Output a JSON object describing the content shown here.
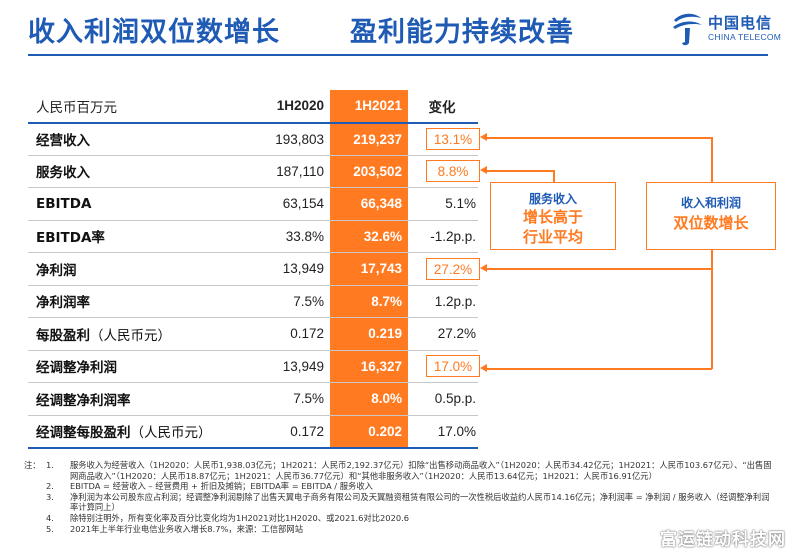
{
  "header": {
    "title_left": "收入利润双位数增长",
    "title_right": "盈利能力持续改善",
    "logo_cn": "中国电信",
    "logo_en": "CHINA TELECOM",
    "brand_color": "#1f5bb5",
    "accent_color": "#ff7a20"
  },
  "table": {
    "columns": [
      "人民币百万元",
      "1H2020",
      "1H2021",
      "变化"
    ],
    "rows": [
      {
        "label": "经营收入",
        "paren": "",
        "prev": "193,803",
        "cur": "219,237",
        "change": "13.1%",
        "boxed": true
      },
      {
        "label": "服务收入",
        "paren": "",
        "prev": "187,110",
        "cur": "203,502",
        "change": "8.8%",
        "boxed": true
      },
      {
        "label": "EBITDA",
        "paren": "",
        "prev": "63,154",
        "cur": "66,348",
        "change": "5.1%",
        "boxed": false
      },
      {
        "label": "EBITDA率",
        "paren": "",
        "prev": "33.8%",
        "cur": "32.6%",
        "change": "-1.2p.p.",
        "boxed": false
      },
      {
        "label": "净利润",
        "paren": "",
        "prev": "13,949",
        "cur": "17,743",
        "change": "27.2%",
        "boxed": true
      },
      {
        "label": "净利润率",
        "paren": "",
        "prev": "7.5%",
        "cur": "8.7%",
        "change": "1.2p.p.",
        "boxed": false
      },
      {
        "label": "每股盈利",
        "paren": "（人民币元）",
        "prev": "0.172",
        "cur": "0.219",
        "change": "27.2%",
        "boxed": false
      },
      {
        "label": "经调整净利润",
        "paren": "",
        "prev": "13,949",
        "cur": "16,327",
        "change": "17.0%",
        "boxed": true
      },
      {
        "label": "经调整净利润率",
        "paren": "",
        "prev": "7.5%",
        "cur": "8.0%",
        "change": "0.5p.p.",
        "boxed": false
      },
      {
        "label": "经调整每股盈利",
        "paren": "（人民币元）",
        "prev": "0.172",
        "cur": "0.202",
        "change": "17.0%",
        "boxed": false
      }
    ]
  },
  "callouts": {
    "service": {
      "small": "服务收入",
      "line1": "增长高于",
      "line2": "行业平均"
    },
    "profit": {
      "small": "收入和利润",
      "line1": "双位数增长"
    }
  },
  "notes": {
    "head": "注：",
    "items": [
      {
        "num": "1.",
        "text": "服务收入为经营收入（1H2020：人民币1,938.03亿元；1H2021：人民币2,192.37亿元）扣除“出售移动商品收入”（1H2020：人民币34.42亿元；1H2021：人民币103.67亿元）、“出售固网商品收入”（1H2020：人民币18.87亿元；1H2021：人民币36.77亿元）和“其他非服务收入”（1H2020：人民币13.64亿元；1H2021：人民币16.91亿元）"
      },
      {
        "num": "2.",
        "text": "EBITDA = 经营收入 – 经营费用 + 折旧及摊销；EBITDA率 = EBITDA / 服务收入"
      },
      {
        "num": "3.",
        "text": "净利润为本公司股东应占利润；经调整净利润剔除了出售天翼电子商务有限公司及天翼融资租赁有限公司的一次性税后收益约人民币14.16亿元；净利润率 = 净利润 / 服务收入（经调整净利润率计算同上）"
      },
      {
        "num": "4.",
        "text": "除特别注明外，所有变化率及百分比变化均为1H2021对比1H2020、或2021.6对比2020.6"
      },
      {
        "num": "5.",
        "text": "2021年上半年行业电信业务收入增长8.7%，来源：工信部网站"
      }
    ]
  },
  "watermark": "富运链动科技网"
}
